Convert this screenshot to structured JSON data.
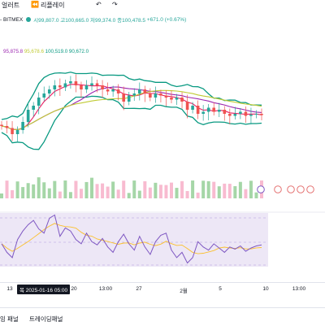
{
  "toolbar": {
    "item_alert": "얼러트",
    "item_replay": "리플레이",
    "undo_icon": "↶",
    "redo_icon": "↷",
    "replay_icon": "⏪"
  },
  "legend": {
    "symbol": "- BITMEX",
    "open": "시99,807.0",
    "high": "고100,665.0",
    "low": "저99,374.0",
    "close": "종100,478.5",
    "change": "+671.0 (+0.67%)"
  },
  "indicator_legend": {
    "v1": "95,875.8",
    "v2": "95,678.6",
    "v3": "100,519.0",
    "v4": "90,672.0"
  },
  "xaxis": {
    "labels": [
      "13",
      "20",
      "13:00",
      "27",
      "2월",
      "5",
      "10",
      "13:00"
    ],
    "cursor_label": "목 2025-01-16   05:00"
  },
  "bottom_tabs": {
    "tab1": "잉 패널",
    "tab2": "트레이딩패널"
  },
  "colors": {
    "up": "#26a69a",
    "down": "#ef5350",
    "bb": "#089981",
    "ma1": "#e91e63",
    "ma2": "#9c27b0",
    "ma3": "#c0ca33",
    "rsi": "#7e57c2",
    "rsi_ma": "#fbc02d",
    "rsi_band": "#ede7f6"
  },
  "chart_data": {
    "type": "line",
    "series": [
      {
        "values": [
          94,
          93.5,
          92,
          93,
          95,
          98,
          99,
          101,
          102,
          103,
          104,
          103.5,
          104.5,
          105,
          104,
          103,
          104,
          104.5,
          104,
          103,
          102.5,
          103,
          102,
          100,
          101.5,
          102,
          103,
          102,
          101,
          102,
          101.5,
          101,
          100.5,
          101,
          100,
          98,
          99,
          97,
          97.5,
          98.5,
          97.5,
          98,
          97,
          96.5,
          97,
          97.5,
          96.5,
          96.8,
          97,
          96.7
        ]
      },
      {
        "values": [
          48,
          40,
          35,
          52,
          60,
          66,
          70,
          62,
          58,
          72,
          75,
          55,
          63,
          60,
          52,
          48,
          58,
          50,
          47,
          53,
          45,
          40,
          50,
          57,
          48,
          42,
          55,
          45,
          38,
          50,
          56,
          58,
          42,
          35,
          40,
          30,
          35,
          50,
          45,
          42,
          48,
          44,
          40,
          45,
          43,
          46,
          41,
          44,
          46,
          47
        ]
      }
    ]
  }
}
